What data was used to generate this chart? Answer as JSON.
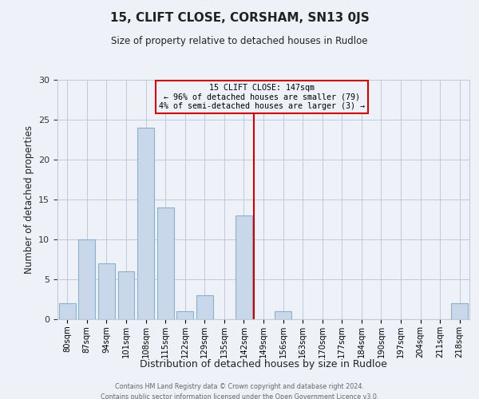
{
  "title": "15, CLIFT CLOSE, CORSHAM, SN13 0JS",
  "subtitle": "Size of property relative to detached houses in Rudloe",
  "xlabel": "Distribution of detached houses by size in Rudloe",
  "ylabel": "Number of detached properties",
  "categories": [
    "80sqm",
    "87sqm",
    "94sqm",
    "101sqm",
    "108sqm",
    "115sqm",
    "122sqm",
    "129sqm",
    "135sqm",
    "142sqm",
    "149sqm",
    "156sqm",
    "163sqm",
    "170sqm",
    "177sqm",
    "184sqm",
    "190sqm",
    "197sqm",
    "204sqm",
    "211sqm",
    "218sqm"
  ],
  "values": [
    2,
    10,
    7,
    6,
    24,
    14,
    1,
    3,
    0,
    13,
    0,
    1,
    0,
    0,
    0,
    0,
    0,
    0,
    0,
    0,
    2
  ],
  "bar_color": "#c8d8ea",
  "bar_edge_color": "#8ab0cc",
  "vline_x": 10.0,
  "vline_color": "#cc0000",
  "annotation_title": "15 CLIFT CLOSE: 147sqm",
  "annotation_line1": "← 96% of detached houses are smaller (79)",
  "annotation_line2": "4% of semi-detached houses are larger (3) →",
  "annotation_box_color": "#cc0000",
  "ylim": [
    0,
    30
  ],
  "yticks": [
    0,
    5,
    10,
    15,
    20,
    25,
    30
  ],
  "grid_color": "#c0cad8",
  "bg_color": "#eef2f8",
  "footer1": "Contains HM Land Registry data © Crown copyright and database right 2024.",
  "footer2": "Contains public sector information licensed under the Open Government Licence v3.0."
}
